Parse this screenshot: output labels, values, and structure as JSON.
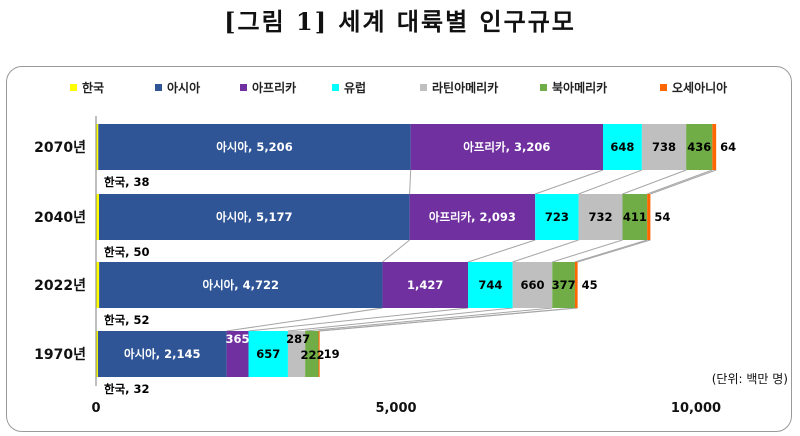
{
  "title": "[그림 1] 세계 대륙별 인구규모",
  "unit_note": "(단위: 백만 명)",
  "chart_data": {
    "type": "bar",
    "stacked": true,
    "orientation": "horizontal",
    "categories": [
      "2070년",
      "2040년",
      "2022년",
      "1970년"
    ],
    "xlim": [
      0,
      11000
    ],
    "xticks": [
      "0",
      "5,000",
      "10,000"
    ],
    "xtick_values": [
      0,
      5000,
      10000
    ],
    "grid": false,
    "legend_position": "top",
    "series": [
      {
        "name": "한국",
        "color": "#ffff00",
        "values": [
          38,
          50,
          52,
          32
        ],
        "labels": [
          "한국, 38",
          "한국, 50",
          "한국, 52",
          "한국, 32"
        ]
      },
      {
        "name": "아시아",
        "color": "#2f5597",
        "values": [
          5206,
          5177,
          4722,
          2145
        ],
        "labels": [
          "아시아, 5,206",
          "아시아, 5,177",
          "아시아, 4,722",
          "아시아, 2,145"
        ]
      },
      {
        "name": "아프리카",
        "color": "#7030a0",
        "values": [
          3206,
          2093,
          1427,
          365
        ],
        "labels": [
          "아프리카, 3,206",
          "아프리카, 2,093",
          "1,427",
          "365"
        ]
      },
      {
        "name": "유럽",
        "color": "#00ffff",
        "values": [
          648,
          723,
          744,
          657
        ],
        "labels": [
          "648",
          "723",
          "744",
          "657"
        ]
      },
      {
        "name": "라틴아메리카",
        "color": "#bfbfbf",
        "values": [
          738,
          732,
          660,
          287
        ],
        "labels": [
          "738",
          "732",
          "660",
          "287"
        ]
      },
      {
        "name": "북아메리카",
        "color": "#70ad47",
        "values": [
          436,
          411,
          377,
          222
        ],
        "labels": [
          "436",
          "411",
          "377",
          "222"
        ]
      },
      {
        "name": "오세아니아",
        "color": "#ff6600",
        "values": [
          64,
          54,
          45,
          19
        ],
        "labels": [
          "64",
          "54",
          "45",
          "19"
        ]
      }
    ]
  }
}
